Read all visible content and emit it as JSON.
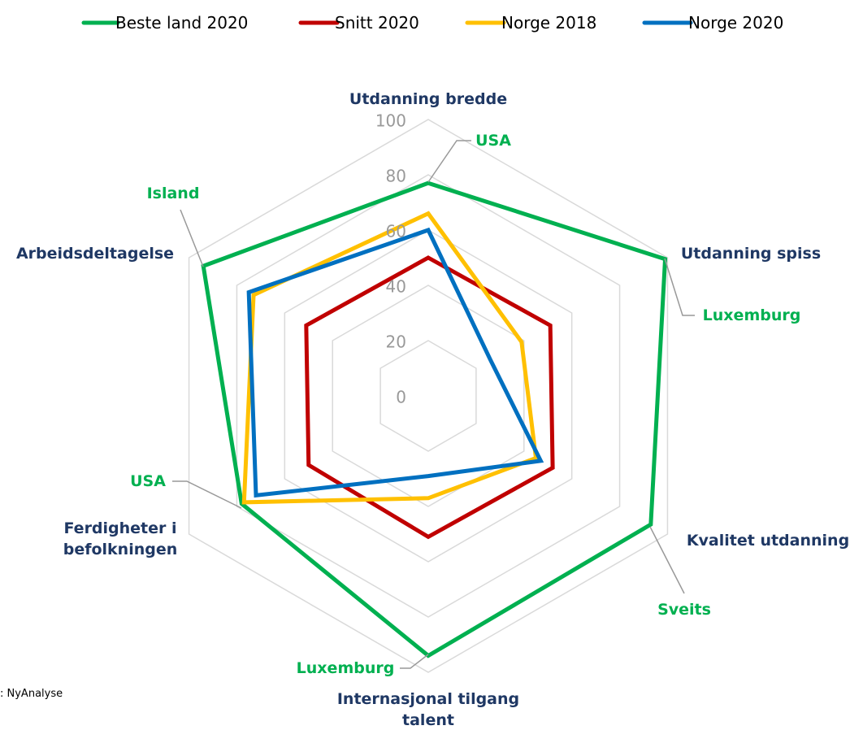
{
  "chart_data": {
    "type": "radar",
    "categories": [
      "Utdanning bredde",
      "Utdanning spiss",
      "Kvalitet utdanning",
      "Internasjonal tilgang talent",
      "Ferdigheter i befolkningen",
      "Arbeidsdeltagelse"
    ],
    "series": [
      {
        "name": "Beste land 2020",
        "color": "#00b050",
        "values": [
          77,
          99,
          93,
          94,
          78,
          94
        ]
      },
      {
        "name": "Snitt 2020",
        "color": "#c00000",
        "values": [
          50,
          51,
          52,
          51,
          50,
          51
        ]
      },
      {
        "name": "Norge 2018",
        "color": "#ffc000",
        "values": [
          66,
          39,
          45,
          37,
          77,
          73
        ]
      },
      {
        "name": "Norge 2020",
        "color": "#0070c0",
        "values": [
          60,
          26,
          47,
          29,
          72,
          75
        ]
      }
    ],
    "rlim": [
      0,
      100
    ],
    "rticks": [
      0,
      20,
      40,
      60,
      80,
      100
    ],
    "grid": true,
    "legend": "top",
    "annotations": [
      "USA",
      "Luxemburg",
      "Sveits",
      "Luxemburg",
      "USA",
      "Island"
    ],
    "source": ": NyAnalyse"
  }
}
